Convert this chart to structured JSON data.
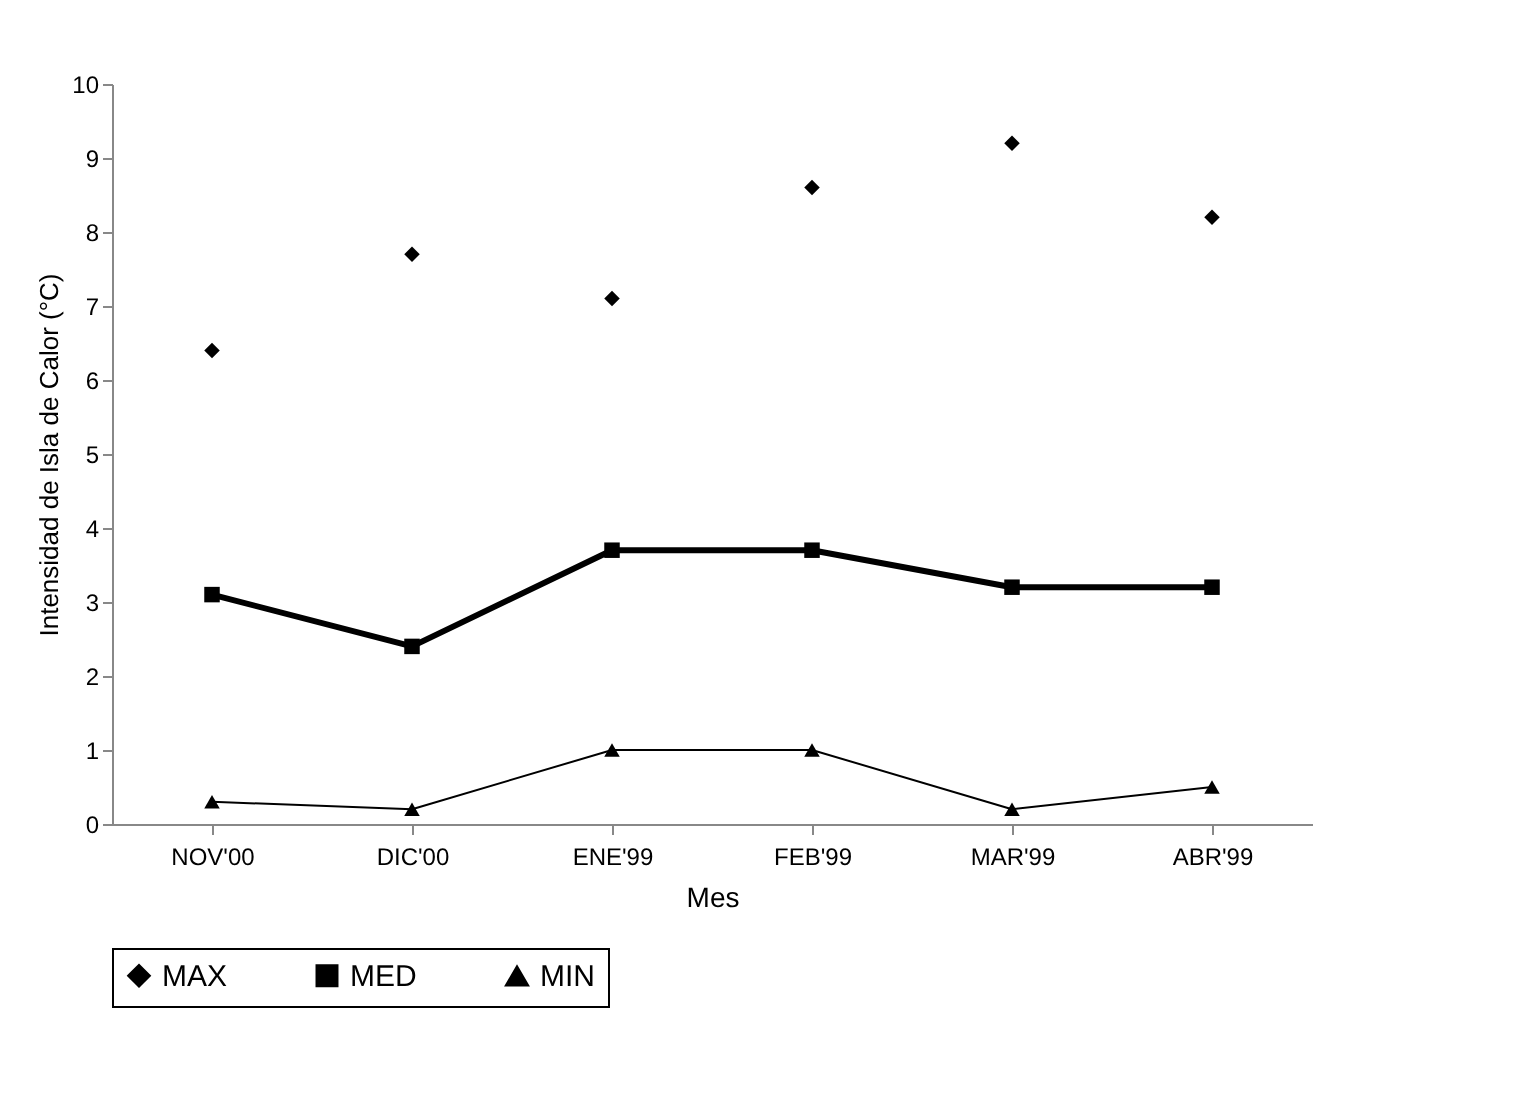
{
  "chart_data": {
    "type": "line",
    "xlabel": "Mes",
    "ylabel": "Intensidad de Isla de Calor (°C)",
    "categories": [
      "NOV'00",
      "DIC'00",
      "ENE'99",
      "FEB'99",
      "MAR'99",
      "ABR'99"
    ],
    "series": [
      {
        "name": "MAX",
        "type": "scatter",
        "marker": "diamond",
        "color": "#000000",
        "values": [
          6.4,
          7.7,
          7.1,
          8.6,
          9.2,
          8.2
        ]
      },
      {
        "name": "MED",
        "marker": "square",
        "color": "#000000",
        "values": [
          3.1,
          2.4,
          3.7,
          3.7,
          3.2,
          3.2
        ]
      },
      {
        "name": "MIN",
        "marker": "triangle",
        "color": "#000000",
        "values": [
          0.3,
          0.2,
          1.0,
          1.0,
          0.2,
          0.5
        ]
      }
    ],
    "ylim": [
      0,
      10
    ],
    "yticks": [
      0,
      1,
      2,
      3,
      4,
      5,
      6,
      7,
      8,
      9,
      10
    ],
    "grid": false,
    "legend": "bottom"
  }
}
